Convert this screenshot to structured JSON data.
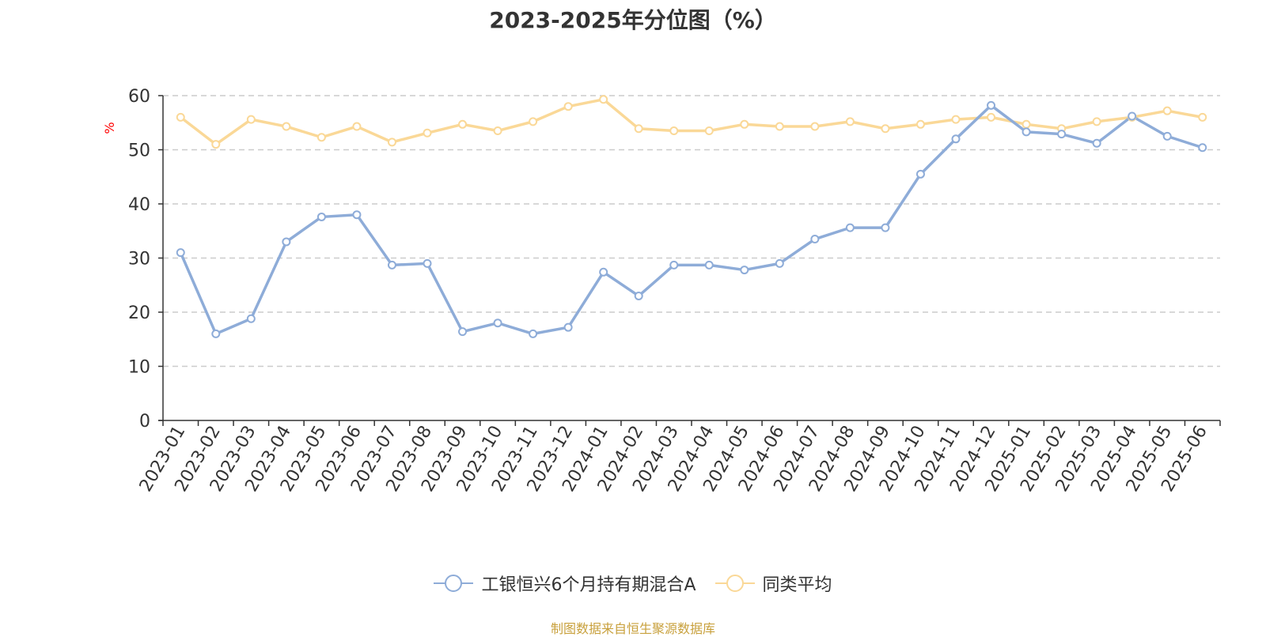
{
  "chart_data": {
    "type": "line",
    "title": "2023-2025年分位图（%）",
    "ylabel": "%",
    "xlabel": "",
    "ylim": [
      0,
      60
    ],
    "yticks": [
      0,
      10,
      20,
      30,
      40,
      50,
      60
    ],
    "grid": true,
    "legend_position": "bottom",
    "categories": [
      "2023-01",
      "2023-02",
      "2023-03",
      "2023-04",
      "2023-05",
      "2023-06",
      "2023-07",
      "2023-08",
      "2023-09",
      "2023-10",
      "2023-11",
      "2023-12",
      "2024-01",
      "2024-02",
      "2024-03",
      "2024-04",
      "2024-05",
      "2024-06",
      "2024-07",
      "2024-08",
      "2024-09",
      "2024-10",
      "2024-11",
      "2024-12",
      "2025-01",
      "2025-02",
      "2025-03",
      "2025-04",
      "2025-05",
      "2025-06"
    ],
    "series": [
      {
        "name": "工银恒兴6个月持有期混合A",
        "color": "#8eacd8",
        "values": [
          31,
          16,
          18.8,
          33,
          37.6,
          38,
          28.7,
          29,
          16.4,
          18,
          16,
          17.2,
          27.4,
          23,
          28.7,
          28.7,
          27.8,
          29,
          33.5,
          35.6,
          35.6,
          45.5,
          52,
          58.2,
          53.3,
          52.9,
          51.2,
          56.2,
          52.5,
          50.4
        ]
      },
      {
        "name": "同类平均",
        "color": "#fad897",
        "values": [
          56,
          51,
          55.6,
          54.3,
          52.3,
          54.3,
          51.4,
          53.1,
          54.7,
          53.5,
          55.2,
          58,
          59.3,
          53.9,
          53.5,
          53.5,
          54.7,
          54.3,
          54.3,
          55.2,
          53.9,
          54.7,
          55.6,
          56,
          54.7,
          53.9,
          55.2,
          56,
          57.2,
          56
        ]
      }
    ]
  },
  "source_note": "制图数据来自恒生聚源数据库",
  "colors": {
    "title": "#333333",
    "axis": "#333333",
    "grid": "#cccccc",
    "ylabel": "#ff0000",
    "source_note": "#c8a03c"
  }
}
